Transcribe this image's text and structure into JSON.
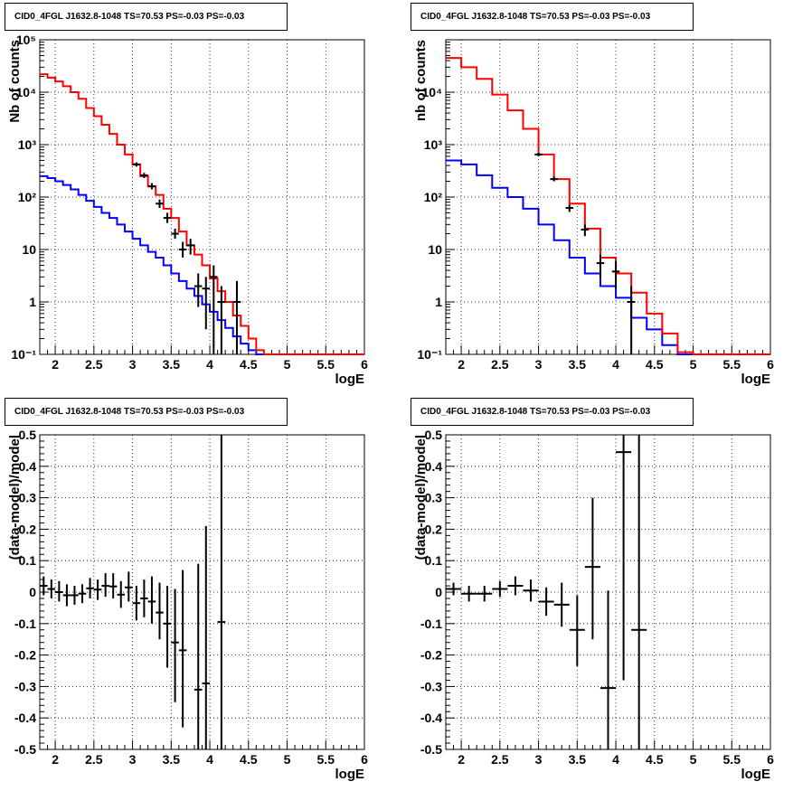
{
  "colors": {
    "data": "#000000",
    "total_model": "#ff0000",
    "component_model": "#0000ff",
    "grid": "#000000"
  },
  "panels": [
    {
      "title": "CID0_4FGL J1632.8-1048 TS=70.53 PS=-0.03 PS=-0.03",
      "chart_data": {
        "type": "line",
        "xlabel": "logE",
        "ylabel": "Nb of counts",
        "log_y": true,
        "grid": true,
        "xlim": [
          1.8,
          6
        ],
        "ylim": [
          0.1,
          100000
        ],
        "x_ticks": [
          "2",
          "2.5",
          "3",
          "3.5",
          "4",
          "4.5",
          "5",
          "5.5",
          "6"
        ],
        "y_ticks": [
          "10⁻¹",
          "1",
          "10",
          "10²",
          "10³",
          "10⁴",
          "10⁵"
        ],
        "bin_edges": [
          1.8,
          1.9,
          2.0,
          2.1,
          2.2,
          2.3,
          2.4,
          2.5,
          2.6,
          2.7,
          2.8,
          2.9,
          3.0,
          3.1,
          3.2,
          3.3,
          3.4,
          3.5,
          3.6,
          3.7,
          3.8,
          3.9,
          4.0,
          4.1,
          4.2,
          4.3,
          4.4,
          4.5,
          4.6,
          4.7,
          4.8,
          4.9,
          5.0,
          5.1,
          5.2,
          5.3,
          5.4,
          5.5,
          5.6,
          5.7,
          5.8,
          5.9,
          6.0
        ],
        "series": [
          {
            "values": [
              22000,
              19000,
              16000,
              13000,
              10000,
              7500,
              5000,
              3500,
              2400,
              1600,
              1000,
              650,
              420,
              250,
              160,
              110,
              60,
              40,
              22,
              12,
              8,
              5,
              2.8,
              1.6,
              1.0,
              0.55,
              0.35,
              0.2,
              0.12,
              0.1,
              0.1,
              0.1,
              0.1,
              0.1,
              0.1,
              0.1,
              0.1,
              0.1,
              0.1,
              0.1,
              0.1,
              0.1
            ]
          },
          {
            "values": [
              250,
              230,
              200,
              170,
              140,
              110,
              85,
              65,
              50,
              40,
              30,
              22,
              16,
              12,
              9,
              7,
              5,
              3.5,
              2.5,
              1.8,
              1.3,
              0.9,
              0.65,
              0.45,
              0.32,
              0.22,
              0.16,
              0.12,
              0.1,
              0.1,
              0.1,
              0.1,
              0.1,
              0.1,
              0.1,
              0.1,
              0.1,
              0.1,
              0.1,
              0.1,
              0.1,
              0.1
            ]
          }
        ],
        "points": [
          {
            "x": 3.05,
            "y": 420,
            "ylo": 380,
            "yhi": 460
          },
          {
            "x": 3.15,
            "y": 260,
            "ylo": 230,
            "yhi": 290
          },
          {
            "x": 3.25,
            "y": 160,
            "ylo": 140,
            "yhi": 185
          },
          {
            "x": 3.35,
            "y": 75,
            "ylo": 62,
            "yhi": 90
          },
          {
            "x": 3.45,
            "y": 40,
            "ylo": 32,
            "yhi": 50
          },
          {
            "x": 3.55,
            "y": 20,
            "ylo": 16,
            "yhi": 25
          },
          {
            "x": 3.65,
            "y": 10,
            "ylo": 7,
            "yhi": 14
          },
          {
            "x": 3.75,
            "y": 12,
            "ylo": 8,
            "yhi": 16
          },
          {
            "x": 3.85,
            "y": 2,
            "ylo": 0.8,
            "yhi": 3.5
          },
          {
            "x": 3.95,
            "y": 1.8,
            "ylo": 0.3,
            "yhi": 3
          },
          {
            "x": 4.05,
            "y": 3,
            "ylo": 0.1,
            "yhi": 5
          },
          {
            "x": 4.15,
            "y": 1,
            "ylo": 0.1,
            "yhi": 2
          },
          {
            "x": 4.35,
            "y": 1,
            "ylo": 0.1,
            "yhi": 2.5
          }
        ]
      }
    },
    {
      "title": "CID0_4FGL J1632.8-1048 TS=70.53 PS=-0.03 PS=-0.03",
      "chart_data": {
        "type": "line",
        "xlabel": "logE",
        "ylabel": "nb of counts",
        "log_y": true,
        "grid": true,
        "xlim": [
          1.8,
          6
        ],
        "ylim": [
          0.1,
          100000
        ],
        "x_ticks": [
          "2",
          "2.5",
          "3",
          "3.5",
          "4",
          "4.5",
          "5",
          "5.5",
          "6"
        ],
        "y_ticks": [
          "10⁻¹",
          "1",
          "10",
          "10²",
          "10³",
          "10⁴"
        ],
        "bin_edges": [
          1.8,
          2.0,
          2.2,
          2.4,
          2.6,
          2.8,
          3.0,
          3.2,
          3.4,
          3.6,
          3.8,
          4.0,
          4.2,
          4.4,
          4.6,
          4.8,
          5.0,
          5.2,
          5.4,
          5.6,
          5.8,
          6.0
        ],
        "series": [
          {
            "values": [
              45000,
              30000,
              18000,
              9000,
              4500,
              2000,
              650,
              220,
              75,
              25,
              7,
              3.5,
              1.5,
              0.6,
              0.25,
              0.11,
              0.1,
              0.1,
              0.1,
              0.1,
              0.1
            ]
          },
          {
            "values": [
              500,
              420,
              260,
              150,
              100,
              60,
              30,
              15,
              7,
              3.5,
              2,
              1.2,
              0.5,
              0.3,
              0.15,
              0.1,
              0.1,
              0.1,
              0.1,
              0.1,
              0.1
            ]
          }
        ],
        "points": [
          {
            "x": 3.0,
            "y": 650,
            "ylo": 600,
            "yhi": 700
          },
          {
            "x": 3.2,
            "y": 220,
            "ylo": 200,
            "yhi": 245
          },
          {
            "x": 3.4,
            "y": 62,
            "ylo": 52,
            "yhi": 72
          },
          {
            "x": 3.6,
            "y": 24,
            "ylo": 18,
            "yhi": 30
          },
          {
            "x": 3.8,
            "y": 5.5,
            "ylo": 3,
            "yhi": 8
          },
          {
            "x": 4.0,
            "y": 3.8,
            "ylo": 1.8,
            "yhi": 6
          },
          {
            "x": 4.2,
            "y": 1,
            "ylo": 0.1,
            "yhi": 2
          }
        ]
      }
    },
    {
      "title": "CID0_4FGL J1632.8-1048 TS=70.53 PS=-0.03 PS=-0.03",
      "chart_data": {
        "type": "scatter",
        "xlabel": "logE",
        "ylabel": "(data-model)/model",
        "log_y": false,
        "grid": true,
        "xlim": [
          1.8,
          6
        ],
        "ylim": [
          -0.5,
          0.5
        ],
        "x_ticks": [
          "2",
          "2.5",
          "3",
          "3.5",
          "4",
          "4.5",
          "5",
          "5.5",
          "6"
        ],
        "y_ticks": [
          "-0.5",
          "-0.4",
          "-0.3",
          "-0.2",
          "-0.1",
          "0",
          "0.1",
          "0.2",
          "0.3",
          "0.4",
          "0.5"
        ],
        "points": [
          {
            "x": 1.85,
            "y": 0.02,
            "ylo": -0.01,
            "yhi": 0.05,
            "xerr": 0.05
          },
          {
            "x": 1.95,
            "y": 0.01,
            "ylo": -0.02,
            "yhi": 0.04,
            "xerr": 0.05
          },
          {
            "x": 2.05,
            "y": 0.0,
            "ylo": -0.03,
            "yhi": 0.035,
            "xerr": 0.05
          },
          {
            "x": 2.15,
            "y": -0.01,
            "ylo": -0.045,
            "yhi": 0.025,
            "xerr": 0.05
          },
          {
            "x": 2.25,
            "y": -0.01,
            "ylo": -0.04,
            "yhi": 0.02,
            "xerr": 0.05
          },
          {
            "x": 2.35,
            "y": -0.005,
            "ylo": -0.035,
            "yhi": 0.025,
            "xerr": 0.05
          },
          {
            "x": 2.45,
            "y": 0.012,
            "ylo": -0.02,
            "yhi": 0.045,
            "xerr": 0.05
          },
          {
            "x": 2.55,
            "y": 0.008,
            "ylo": -0.025,
            "yhi": 0.04,
            "xerr": 0.05
          },
          {
            "x": 2.65,
            "y": 0.02,
            "ylo": -0.015,
            "yhi": 0.06,
            "xerr": 0.05
          },
          {
            "x": 2.75,
            "y": 0.018,
            "ylo": -0.02,
            "yhi": 0.06,
            "xerr": 0.05
          },
          {
            "x": 2.85,
            "y": -0.008,
            "ylo": -0.05,
            "yhi": 0.035,
            "xerr": 0.05
          },
          {
            "x": 2.95,
            "y": 0.015,
            "ylo": -0.03,
            "yhi": 0.065,
            "xerr": 0.05
          },
          {
            "x": 3.05,
            "y": -0.035,
            "ylo": -0.09,
            "yhi": 0.02,
            "xerr": 0.05
          },
          {
            "x": 3.15,
            "y": -0.02,
            "ylo": -0.08,
            "yhi": 0.04,
            "xerr": 0.05
          },
          {
            "x": 3.25,
            "y": -0.03,
            "ylo": -0.1,
            "yhi": 0.05,
            "xerr": 0.05
          },
          {
            "x": 3.35,
            "y": -0.065,
            "ylo": -0.15,
            "yhi": 0.03,
            "xerr": 0.05
          },
          {
            "x": 3.45,
            "y": -0.1,
            "ylo": -0.24,
            "yhi": 0.02,
            "xerr": 0.05
          },
          {
            "x": 3.55,
            "y": -0.16,
            "ylo": -0.35,
            "yhi": 0.01,
            "xerr": 0.05
          },
          {
            "x": 3.65,
            "y": -0.185,
            "ylo": -0.43,
            "yhi": 0.07,
            "xerr": 0.05
          },
          {
            "x": 3.85,
            "y": -0.31,
            "ylo": -0.5,
            "yhi": 0.09,
            "xerr": 0.05
          },
          {
            "x": 3.95,
            "y": -0.29,
            "ylo": -0.5,
            "yhi": 0.21,
            "xerr": 0.05
          },
          {
            "x": 4.15,
            "y": -0.095,
            "ylo": -0.5,
            "yhi": 0.5,
            "xerr": 0.05
          }
        ]
      }
    },
    {
      "title": "CID0_4FGL J1632.8-1048 TS=70.53 PS=-0.03 PS=-0.03",
      "chart_data": {
        "type": "scatter",
        "xlabel": "logE",
        "ylabel": "(data-model)/model",
        "log_y": false,
        "grid": true,
        "xlim": [
          1.8,
          6
        ],
        "ylim": [
          -0.5,
          0.5
        ],
        "x_ticks": [
          "2",
          "2.5",
          "3",
          "3.5",
          "4",
          "4.5",
          "5",
          "5.5",
          "6"
        ],
        "y_ticks": [
          "-0.5",
          "-0.4",
          "-0.3",
          "-0.2",
          "-0.1",
          "0",
          "0.1",
          "0.2",
          "0.3",
          "0.4",
          "0.5"
        ],
        "points": [
          {
            "x": 1.9,
            "y": 0.01,
            "ylo": -0.01,
            "yhi": 0.03,
            "xerr": 0.1
          },
          {
            "x": 2.1,
            "y": -0.005,
            "ylo": -0.03,
            "yhi": 0.02,
            "xerr": 0.1
          },
          {
            "x": 2.3,
            "y": -0.005,
            "ylo": -0.03,
            "yhi": 0.02,
            "xerr": 0.1
          },
          {
            "x": 2.5,
            "y": 0.01,
            "ylo": -0.015,
            "yhi": 0.035,
            "xerr": 0.1
          },
          {
            "x": 2.7,
            "y": 0.02,
            "ylo": -0.01,
            "yhi": 0.05,
            "xerr": 0.1
          },
          {
            "x": 2.9,
            "y": 0.005,
            "ylo": -0.03,
            "yhi": 0.04,
            "xerr": 0.1
          },
          {
            "x": 3.1,
            "y": -0.03,
            "ylo": -0.075,
            "yhi": 0.015,
            "xerr": 0.1
          },
          {
            "x": 3.3,
            "y": -0.04,
            "ylo": -0.11,
            "yhi": 0.03,
            "xerr": 0.1
          },
          {
            "x": 3.5,
            "y": -0.12,
            "ylo": -0.235,
            "yhi": -0.01,
            "xerr": 0.1
          },
          {
            "x": 3.7,
            "y": 0.08,
            "ylo": -0.15,
            "yhi": 0.3,
            "xerr": 0.1
          },
          {
            "x": 3.9,
            "y": -0.305,
            "ylo": -0.5,
            "yhi": 0.005,
            "xerr": 0.1
          },
          {
            "x": 4.1,
            "y": 0.445,
            "ylo": -0.28,
            "yhi": 0.5,
            "xerr": 0.1
          },
          {
            "x": 4.3,
            "y": -0.12,
            "ylo": -0.5,
            "yhi": 0.5,
            "xerr": 0.1
          }
        ]
      }
    }
  ]
}
